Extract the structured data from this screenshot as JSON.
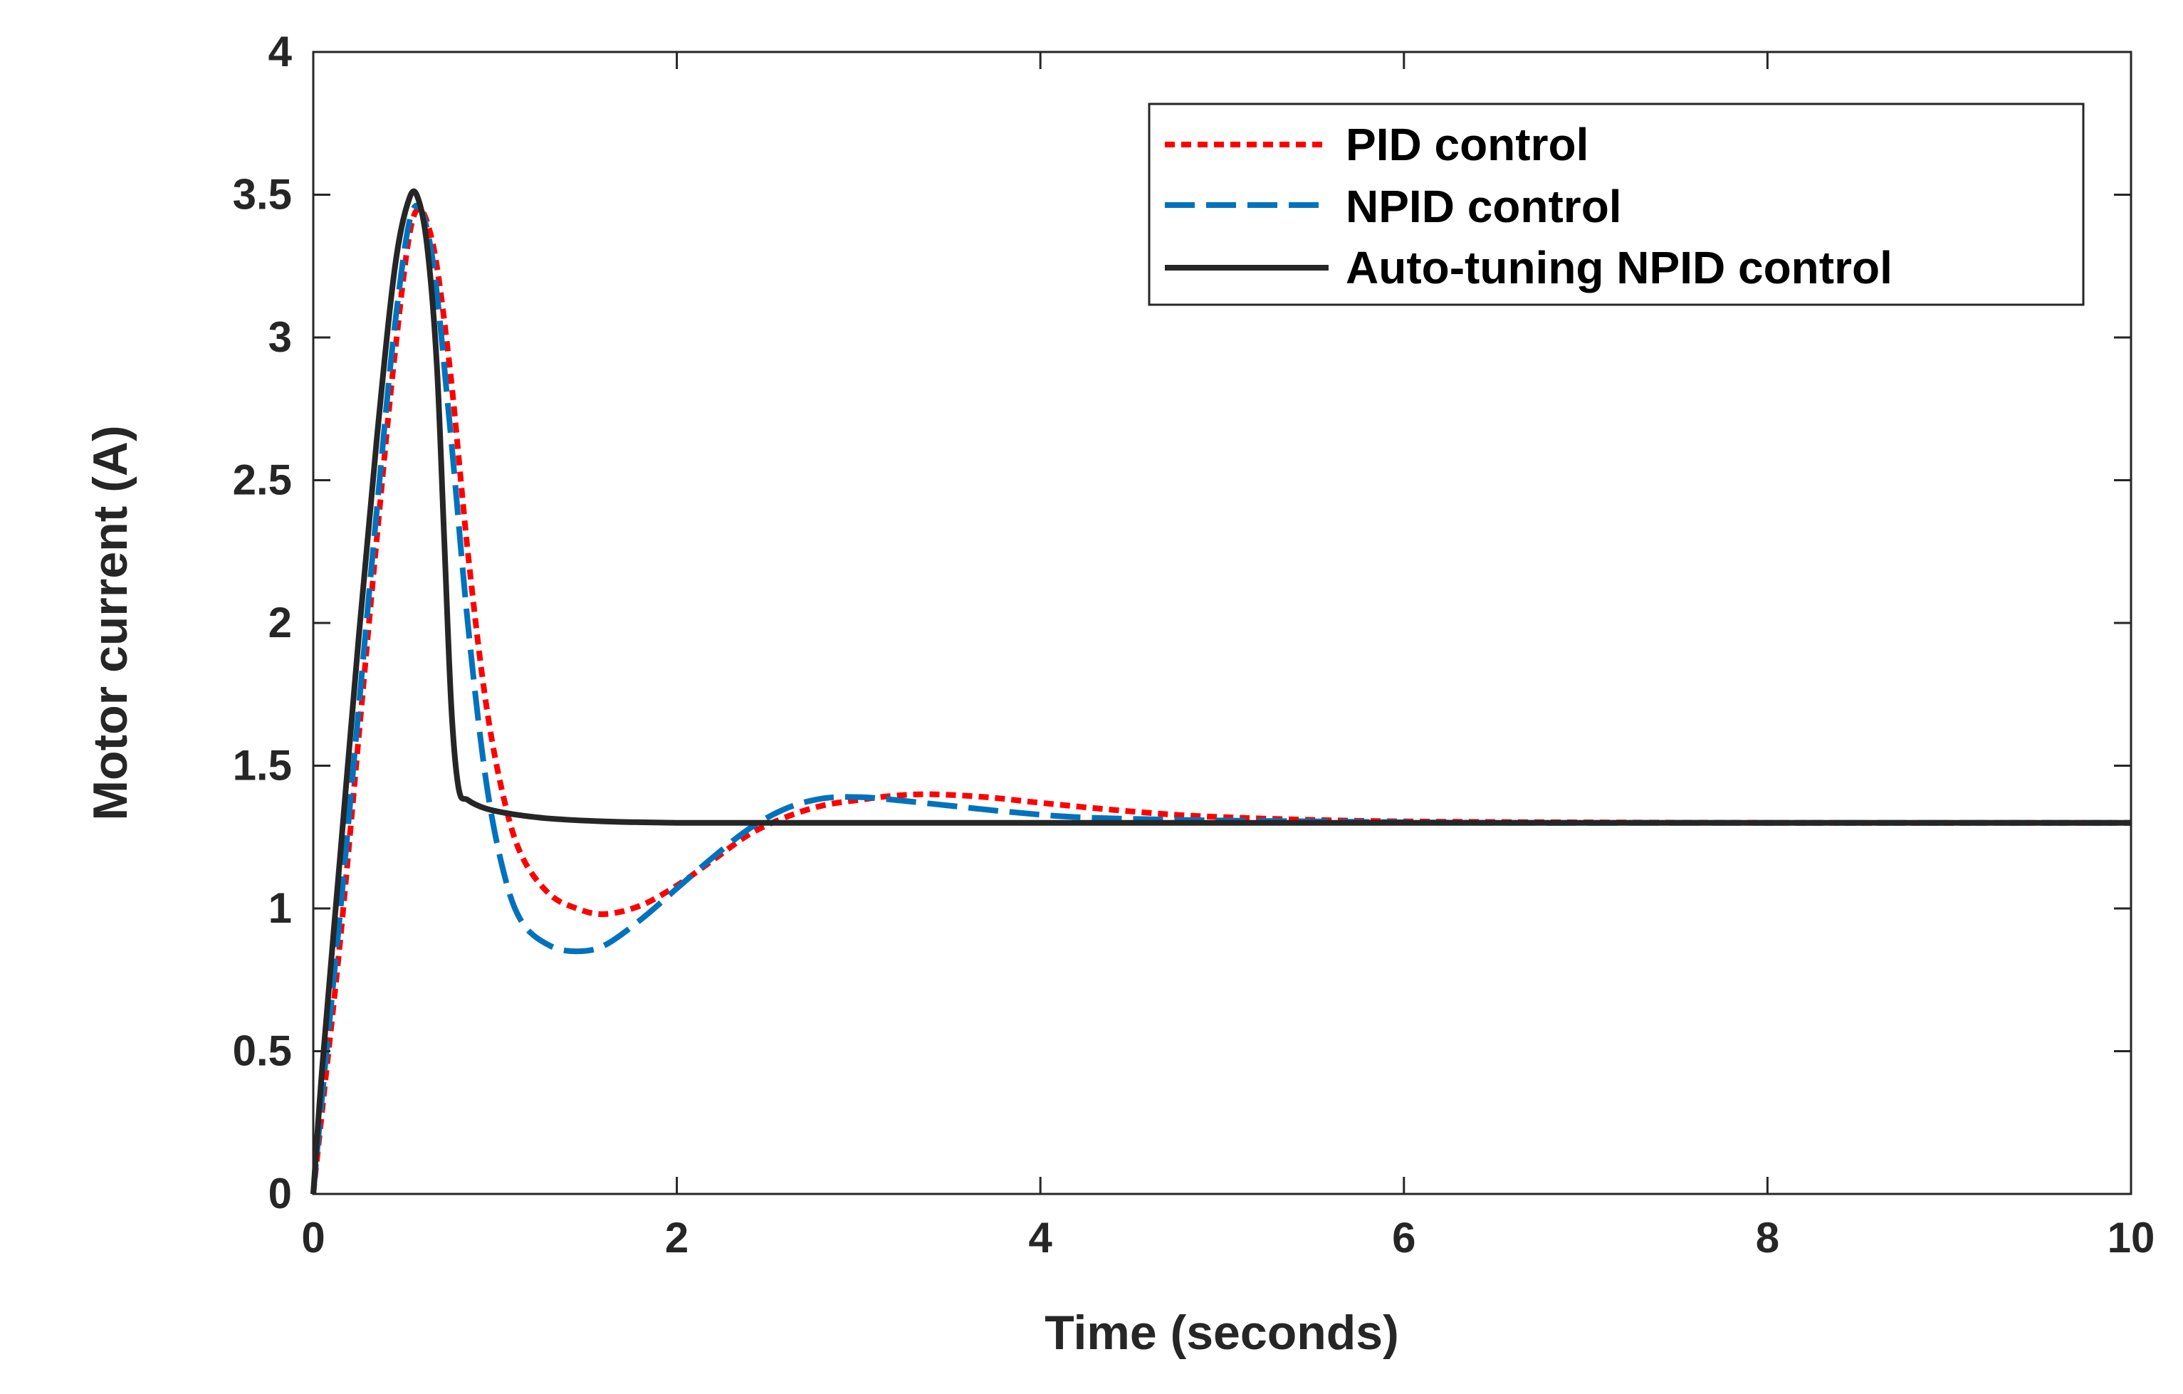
{
  "chart_data": {
    "type": "line",
    "title": "",
    "xlabel": "Time (seconds)",
    "ylabel": "Motor current (A)",
    "xlim": [
      0,
      10
    ],
    "ylim": [
      0,
      4
    ],
    "xticks": [
      "0",
      "2",
      "4",
      "6",
      "8",
      "10"
    ],
    "xtick_values": [
      0,
      2,
      4,
      6,
      8,
      10
    ],
    "yticks": [
      "0",
      "0.5",
      "1",
      "1.5",
      "2",
      "2.5",
      "3",
      "3.5",
      "4"
    ],
    "ytick_values": [
      0,
      0.5,
      1,
      1.5,
      2,
      2.5,
      3,
      3.5,
      4
    ],
    "grid": false,
    "legend_position": "top-right",
    "series": [
      {
        "name": "PID control",
        "color": "#ff0000",
        "style": "dotted",
        "x": [
          0,
          0.05,
          0.15,
          0.25,
          0.35,
          0.45,
          0.55,
          0.65,
          0.75,
          0.85,
          0.95,
          1.05,
          1.15,
          1.3,
          1.45,
          1.6,
          1.8,
          2.0,
          2.2,
          2.4,
          2.6,
          2.8,
          3.0,
          3.2,
          3.4,
          3.7,
          4.0,
          4.5,
          5.0,
          6.0,
          8.0,
          10.0
        ],
        "y": [
          0,
          0.3,
          0.9,
          1.6,
          2.3,
          2.95,
          3.42,
          3.35,
          2.9,
          2.25,
          1.72,
          1.38,
          1.18,
          1.05,
          1.0,
          0.98,
          1.01,
          1.08,
          1.17,
          1.26,
          1.32,
          1.36,
          1.38,
          1.395,
          1.4,
          1.39,
          1.37,
          1.34,
          1.32,
          1.305,
          1.3,
          1.3
        ]
      },
      {
        "name": "NPID control",
        "color": "#0072bd",
        "style": "dashed",
        "x": [
          0,
          0.05,
          0.15,
          0.25,
          0.35,
          0.45,
          0.55,
          0.65,
          0.75,
          0.85,
          0.95,
          1.05,
          1.15,
          1.3,
          1.45,
          1.6,
          1.8,
          2.0,
          2.2,
          2.4,
          2.6,
          2.8,
          3.0,
          3.2,
          3.5,
          3.8,
          4.2,
          4.8,
          5.5,
          6.5,
          8.0,
          10.0
        ],
        "y": [
          0,
          0.35,
          1.0,
          1.7,
          2.4,
          3.05,
          3.45,
          3.3,
          2.7,
          2.0,
          1.45,
          1.12,
          0.95,
          0.87,
          0.85,
          0.87,
          0.96,
          1.07,
          1.18,
          1.28,
          1.35,
          1.385,
          1.39,
          1.38,
          1.36,
          1.34,
          1.32,
          1.31,
          1.305,
          1.3,
          1.3,
          1.3
        ]
      },
      {
        "name": "Auto-tuning NPID control",
        "color": "#262626",
        "style": "solid",
        "x": [
          0,
          0.05,
          0.15,
          0.25,
          0.35,
          0.45,
          0.53,
          0.58,
          0.63,
          0.68,
          0.72,
          0.76,
          0.8,
          0.85,
          0.95,
          1.1,
          1.3,
          1.6,
          2.0,
          2.5,
          3.0,
          4.0,
          6.0,
          8.0,
          10.0
        ],
        "y": [
          0,
          0.45,
          1.2,
          1.95,
          2.65,
          3.25,
          3.49,
          3.48,
          3.3,
          2.9,
          2.3,
          1.7,
          1.42,
          1.38,
          1.35,
          1.33,
          1.315,
          1.305,
          1.3,
          1.3,
          1.3,
          1.3,
          1.3,
          1.3,
          1.3
        ]
      }
    ]
  }
}
